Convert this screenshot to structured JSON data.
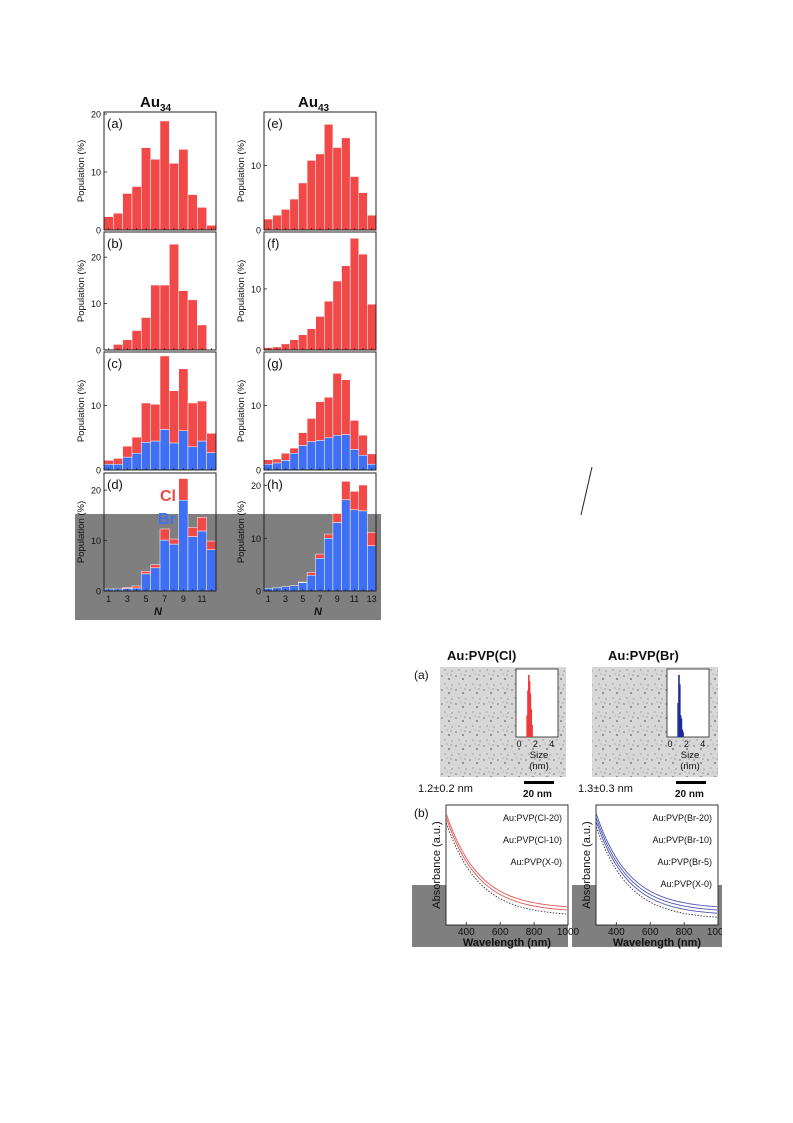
{
  "colors": {
    "red": "#f14848",
    "blue": "#3f6ff2",
    "gray_band": "#7f7f7f",
    "navy_hist": "#1c2d9a",
    "red_hist": "#ee3a3a",
    "red_curve": "#e35454",
    "blue_curve": "#4d56b5"
  },
  "figure1": {
    "title_left": "Au",
    "title_left_sub": "34",
    "title_right": "Au",
    "title_right_sub": "43",
    "ylabel": "Population (%)",
    "xlabel": "N",
    "legend_cl": "Cl",
    "legend_br": "Br"
  },
  "figure2": {
    "title_cl": "Au:PVP(Cl)",
    "title_br": "Au:PVP(Br)",
    "panel_a": "(a)",
    "panel_b": "(b)",
    "size_cl": "1.2±0.2 nm",
    "size_br": "1.3±0.3 nm",
    "scale_bar": "20 nm",
    "inset_xlabel_1": "Size",
    "inset_xlabel_2": "(nm)",
    "inset_ticks": [
      "0",
      "2",
      "4"
    ],
    "abs_ylabel": "Absorbance (a.u.)",
    "abs_xlabel": "Wavelength (nm)",
    "abs_xticks": [
      "400",
      "600",
      "800",
      "1000"
    ],
    "legend_cl": [
      "Au:PVP(Cl-20)",
      "Au:PVP(Cl-10)",
      "Au:PVP(X-0)"
    ],
    "legend_br": [
      "Au:PVP(Br-20)",
      "Au:PVP(Br-10)",
      "Au:PVP(Br-5)",
      "Au:PVP(X-0)"
    ]
  },
  "chart_data": [
    {
      "type": "bar",
      "panel": "(a)",
      "column": "Au34",
      "x": [
        1,
        2,
        3,
        4,
        5,
        6,
        7,
        8,
        9,
        10,
        11,
        12
      ],
      "xticks": [
        "1",
        "3",
        "5",
        "7",
        "9",
        "11"
      ],
      "ylim": [
        0,
        20
      ],
      "yticks": [
        "0",
        "10",
        "20"
      ],
      "series": [
        {
          "values": [
            2.3,
            2.9,
            6.3,
            7.5,
            14.2,
            12.2,
            18.8,
            11.5,
            13.9,
            6.1,
            3.9,
            0.8
          ]
        }
      ]
    },
    {
      "type": "bar",
      "panel": "(b)",
      "column": "Au34",
      "x": [
        1,
        2,
        3,
        4,
        5,
        6,
        7,
        8,
        9,
        10,
        11,
        12
      ],
      "xticks": [
        "1",
        "3",
        "5",
        "7",
        "9",
        "11"
      ],
      "ylim": [
        0,
        25
      ],
      "yticks": [
        "0",
        "10",
        "20"
      ],
      "series": [
        {
          "values": [
            0.2,
            1.2,
            2.2,
            4.2,
            7.0,
            14.0,
            14.0,
            22.8,
            12.8,
            10.8,
            5.4,
            0
          ]
        }
      ]
    },
    {
      "type": "bar",
      "panel": "(c)",
      "column": "Au34",
      "x": [
        1,
        2,
        3,
        4,
        5,
        6,
        7,
        8,
        9,
        10,
        11,
        12
      ],
      "xticks": [
        "1",
        "3",
        "5",
        "7",
        "9",
        "11"
      ],
      "ylim": [
        0,
        18
      ],
      "yticks": [
        "0",
        "10"
      ],
      "series": [
        {
          "name": "Br",
          "values": [
            0.9,
            0.9,
            2.0,
            2.6,
            4.3,
            4.5,
            6.3,
            4.2,
            6.1,
            3.6,
            4.5,
            2.7
          ]
        },
        {
          "name": "Cl",
          "values": [
            0.6,
            0.9,
            1.7,
            2.5,
            6.1,
            5.7,
            11.4,
            8.1,
            9.6,
            6.8,
            6.2,
            3.0
          ]
        }
      ]
    },
    {
      "type": "bar",
      "panel": "(d)",
      "column": "Au34",
      "x": [
        1,
        2,
        3,
        4,
        5,
        6,
        7,
        8,
        9,
        10,
        11,
        12
      ],
      "xticks": [
        "1",
        "3",
        "5",
        "7",
        "9",
        "11"
      ],
      "ylim": [
        0,
        23
      ],
      "yticks": [
        "0",
        "10",
        "20"
      ],
      "series": [
        {
          "name": "Br",
          "values": [
            0.4,
            0.4,
            0.5,
            0.6,
            3.4,
            4.6,
            10.1,
            9.3,
            18.0,
            10.8,
            11.9,
            8.2
          ]
        },
        {
          "name": "Cl",
          "values": [
            0,
            0,
            0.2,
            0.4,
            0.5,
            0.6,
            2.2,
            1.0,
            4.3,
            1.8,
            2.7,
            1.7
          ]
        }
      ]
    },
    {
      "type": "bar",
      "panel": "(e)",
      "column": "Au43",
      "x": [
        1,
        2,
        3,
        4,
        5,
        6,
        7,
        8,
        9,
        10,
        11,
        12,
        13
      ],
      "xticks": [
        "1",
        "3",
        "5",
        "7",
        "9",
        "11",
        "13"
      ],
      "ylim": [
        0,
        18
      ],
      "yticks": [
        "0",
        "10"
      ],
      "series": [
        {
          "values": [
            1.7,
            2.3,
            3.2,
            4.8,
            7.3,
            10.8,
            11.8,
            16.4,
            12.8,
            14.3,
            8.3,
            5.8,
            2.3
          ]
        }
      ]
    },
    {
      "type": "bar",
      "panel": "(f)",
      "column": "Au43",
      "x": [
        1,
        2,
        3,
        4,
        5,
        6,
        7,
        8,
        9,
        10,
        11,
        12,
        13
      ],
      "xticks": [
        "1",
        "3",
        "5",
        "7",
        "9",
        "11",
        "13"
      ],
      "ylim": [
        0,
        19
      ],
      "yticks": [
        "0",
        "10"
      ],
      "series": [
        {
          "values": [
            0.4,
            0.5,
            1.0,
            1.7,
            2.5,
            3.5,
            5.5,
            8.0,
            11.3,
            13.8,
            18.3,
            15.7,
            7.5
          ]
        }
      ]
    },
    {
      "type": "bar",
      "panel": "(g)",
      "column": "Au43",
      "x": [
        1,
        2,
        3,
        4,
        5,
        6,
        7,
        8,
        9,
        10,
        11,
        12,
        13
      ],
      "xticks": [
        "1",
        "3",
        "5",
        "7",
        "9",
        "11",
        "13"
      ],
      "ylim": [
        0,
        18
      ],
      "yticks": [
        "0",
        "10"
      ],
      "series": [
        {
          "name": "Br",
          "values": [
            0.9,
            1.1,
            1.5,
            2.6,
            3.8,
            4.4,
            4.6,
            5.0,
            5.4,
            5.5,
            3.2,
            2.3,
            0.9
          ]
        },
        {
          "name": "Cl",
          "values": [
            0.7,
            0.6,
            1.1,
            0.8,
            2.0,
            3.6,
            6.0,
            6.3,
            9.6,
            8.5,
            4.5,
            3.1,
            1.6
          ]
        }
      ]
    },
    {
      "type": "bar",
      "panel": "(h)",
      "column": "Au43",
      "x": [
        1,
        2,
        3,
        4,
        5,
        6,
        7,
        8,
        9,
        10,
        11,
        12,
        13
      ],
      "xticks": [
        "1",
        "3",
        "5",
        "7",
        "9",
        "11",
        "13"
      ],
      "ylim": [
        0,
        22
      ],
      "yticks": [
        "0",
        "10",
        "20"
      ],
      "series": [
        {
          "name": "Br",
          "values": [
            0.5,
            0.6,
            0.8,
            1.0,
            1.6,
            3.0,
            6.2,
            10.0,
            13.0,
            17.3,
            15.4,
            15.2,
            8.6
          ]
        },
        {
          "name": "Cl",
          "values": [
            0,
            0,
            0,
            0,
            0.1,
            0.5,
            0.8,
            0.8,
            1.7,
            3.5,
            3.5,
            4.9,
            2.5
          ]
        }
      ]
    }
  ]
}
